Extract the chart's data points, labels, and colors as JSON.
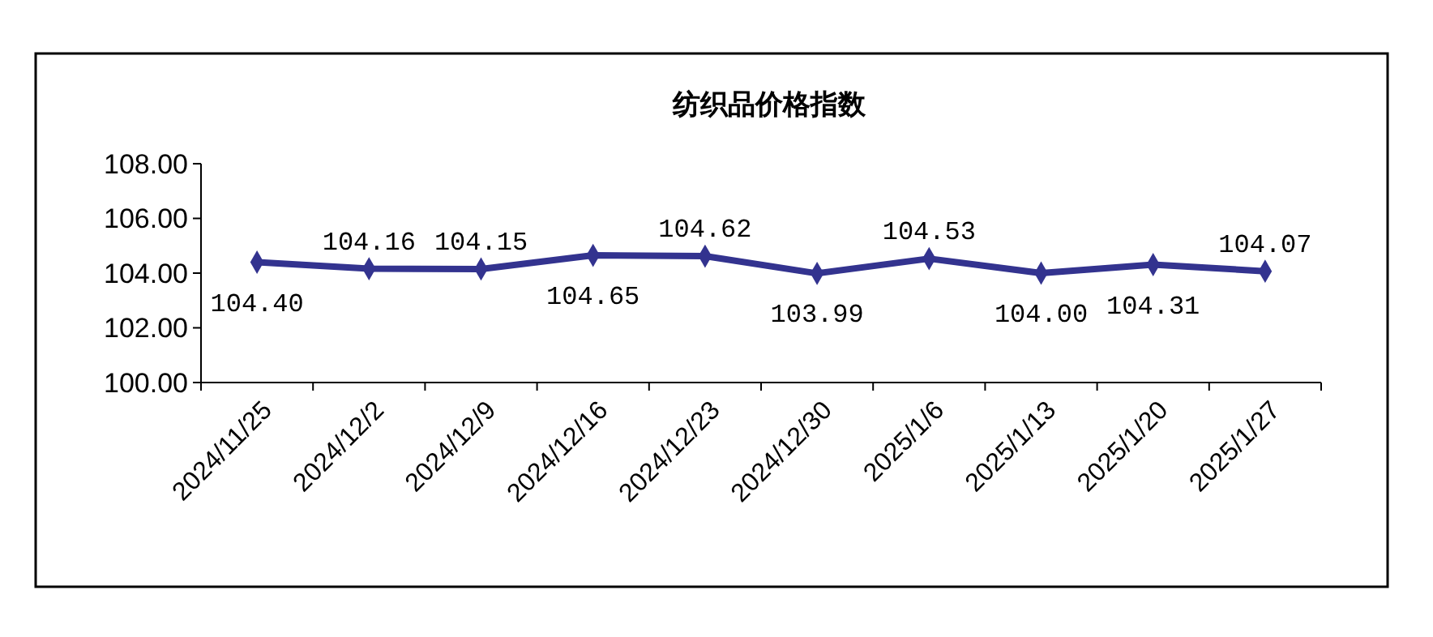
{
  "chart_data": {
    "type": "line",
    "title": "纺织品价格指数",
    "categories": [
      "2024/11/25",
      "2024/12/2",
      "2024/12/9",
      "2024/12/16",
      "2024/12/23",
      "2024/12/30",
      "2025/1/6",
      "2025/1/13",
      "2025/1/20",
      "2025/1/27"
    ],
    "series": [
      {
        "color": "#33338f",
        "values": [
          104.4,
          104.16,
          104.15,
          104.65,
          104.62,
          103.99,
          104.53,
          104.0,
          104.31,
          104.07
        ],
        "value_labels": [
          "104.40",
          "104.16",
          "104.15",
          "104.65",
          "104.62",
          "103.99",
          "104.53",
          "104.00",
          "104.31",
          "104.07"
        ]
      }
    ],
    "ylim": [
      100,
      108
    ],
    "yticks": [
      {
        "value": 100,
        "label": "100.00"
      },
      {
        "value": 102,
        "label": "102.00"
      },
      {
        "value": 104,
        "label": "104.00"
      },
      {
        "value": 106,
        "label": "106.00"
      },
      {
        "value": 108,
        "label": "108.00"
      }
    ],
    "marker": "diamond",
    "line_style": "solid"
  }
}
